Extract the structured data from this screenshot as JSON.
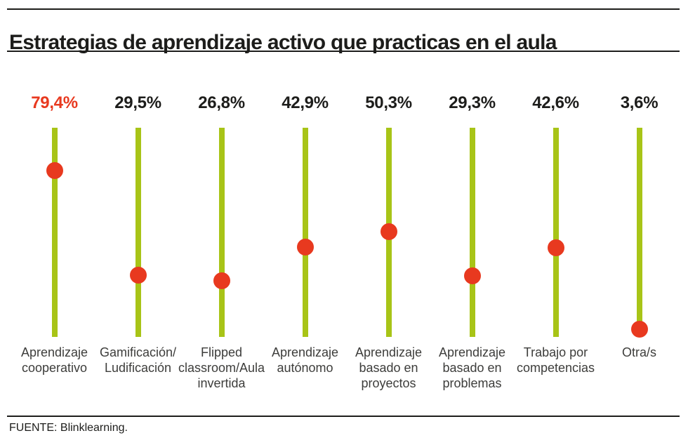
{
  "header": {
    "title": "Estrategias de aprendizaje activo que practicas en el aula"
  },
  "footer": {
    "source_label": "FUENTE: Blinklearning."
  },
  "colors": {
    "accent_red": "#e8391f",
    "stem_green": "#a8c417",
    "ink_black": "#1d1d1b",
    "label_gray": "#3d3d3b"
  },
  "chart_data": {
    "type": "scatter",
    "variant": "lollipop-dot-on-stick",
    "title": "Estrategias de aprendizaje activo que practicas en el aula",
    "xlabel": "",
    "ylabel": "",
    "unit": "%",
    "ylim": [
      0,
      100
    ],
    "grid": false,
    "legend": false,
    "categories": [
      "Aprendizaje cooperativo",
      "Gamificación/Ludificación",
      "Flipped classroom/Aula invertida",
      "Aprendizaje autónomo",
      "Aprendizaje basado en proyectos",
      "Aprendizaje basado en problemas",
      "Trabajo por competencias",
      "Otra/s"
    ],
    "values": [
      79.4,
      29.5,
      26.8,
      42.9,
      50.3,
      29.3,
      42.6,
      3.6
    ],
    "items": [
      {
        "pct_label": "79,4%",
        "value": 79.4,
        "highlight": true,
        "label_lines": [
          "Aprendizaje",
          "cooperativo"
        ]
      },
      {
        "pct_label": "29,5%",
        "value": 29.5,
        "highlight": false,
        "label_lines": [
          "Gamificación/",
          "Ludificación"
        ]
      },
      {
        "pct_label": "26,8%",
        "value": 26.8,
        "highlight": false,
        "label_lines": [
          "Flipped",
          "classroom/Aula",
          "invertida"
        ]
      },
      {
        "pct_label": "42,9%",
        "value": 42.9,
        "highlight": false,
        "label_lines": [
          "Aprendizaje",
          "autónomo"
        ]
      },
      {
        "pct_label": "50,3%",
        "value": 50.3,
        "highlight": false,
        "label_lines": [
          "Aprendizaje",
          "basado en",
          "proyectos"
        ]
      },
      {
        "pct_label": "29,3%",
        "value": 29.3,
        "highlight": false,
        "label_lines": [
          "Aprendizaje",
          "basado en",
          "problemas"
        ]
      },
      {
        "pct_label": "42,6%",
        "value": 42.6,
        "highlight": false,
        "label_lines": [
          "Trabajo por",
          "competencias"
        ]
      },
      {
        "pct_label": "3,6%",
        "value": 3.6,
        "highlight": false,
        "label_lines": [
          "Otra/s"
        ]
      }
    ]
  }
}
